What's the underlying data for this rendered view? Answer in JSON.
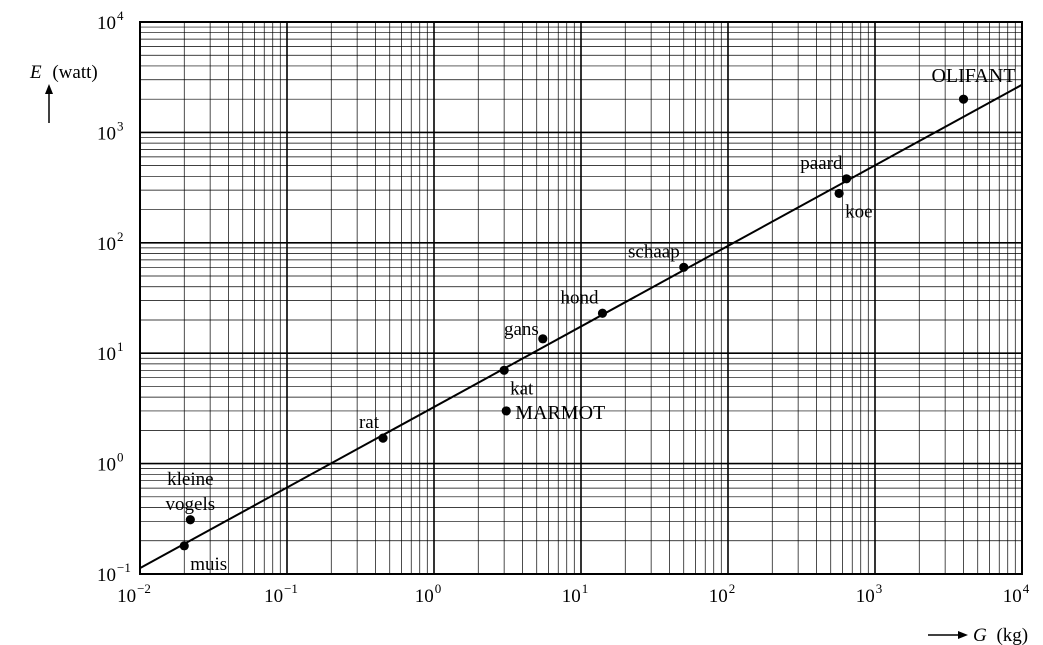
{
  "chart_data": {
    "type": "scatter",
    "title": "",
    "xlabel": {
      "var": "G",
      "unit": "(kg)",
      "arrow": "⟶"
    },
    "ylabel": {
      "var": "E",
      "unit": "(watt)",
      "arrow": "↑"
    },
    "xscale": "log",
    "yscale": "log",
    "xlim": [
      0.01,
      10000
    ],
    "ylim": [
      0.1,
      10000
    ],
    "grid": true,
    "x_ticks": [
      {
        "base": "10",
        "exp": "−2",
        "value": 0.01
      },
      {
        "base": "10",
        "exp": "−1",
        "value": 0.1
      },
      {
        "base": "10",
        "exp": "0",
        "value": 1
      },
      {
        "base": "10",
        "exp": "1",
        "value": 10
      },
      {
        "base": "10",
        "exp": "2",
        "value": 100
      },
      {
        "base": "10",
        "exp": "3",
        "value": 1000
      },
      {
        "base": "10",
        "exp": "4",
        "value": 10000
      }
    ],
    "y_ticks": [
      {
        "base": "10",
        "exp": "−1",
        "value": 0.1
      },
      {
        "base": "10",
        "exp": "0",
        "value": 1
      },
      {
        "base": "10",
        "exp": "1",
        "value": 10
      },
      {
        "base": "10",
        "exp": "2",
        "value": 100
      },
      {
        "base": "10",
        "exp": "3",
        "value": 1000
      },
      {
        "base": "10",
        "exp": "4",
        "value": 10000
      }
    ],
    "points": [
      {
        "label": "kleine\nvogels",
        "x": 0.022,
        "y": 0.31,
        "label_pos": "above-left"
      },
      {
        "label": "muis",
        "x": 0.02,
        "y": 0.18,
        "label_pos": "below-right"
      },
      {
        "label": "rat",
        "x": 0.45,
        "y": 1.7,
        "label_pos": "above-left"
      },
      {
        "label": "kat",
        "x": 3.0,
        "y": 7.0,
        "label_pos": "below-right"
      },
      {
        "label": "MARMOT",
        "x": 3.1,
        "y": 3.0,
        "label_pos": "right"
      },
      {
        "label": "gans",
        "x": 5.5,
        "y": 13.5,
        "label_pos": "left"
      },
      {
        "label": "hond",
        "x": 14,
        "y": 23,
        "label_pos": "above-left"
      },
      {
        "label": "schaap",
        "x": 50,
        "y": 60,
        "label_pos": "above-left"
      },
      {
        "label": "paard",
        "x": 640,
        "y": 380,
        "label_pos": "above-left"
      },
      {
        "label": "koe",
        "x": 570,
        "y": 280,
        "label_pos": "below-right"
      },
      {
        "label": "OLIFANT",
        "x": 4000,
        "y": 2000,
        "label_pos": "above"
      }
    ],
    "fit_line": {
      "x": [
        0.01,
        10000
      ],
      "y": [
        0.113,
        2700
      ]
    }
  }
}
